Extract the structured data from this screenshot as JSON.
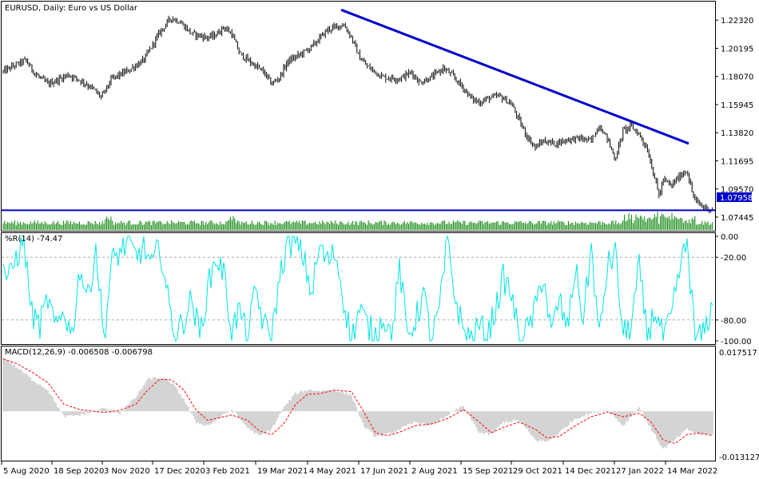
{
  "header": {
    "symbol_label": "EURUSD, Daily:  Euro vs US Dollar"
  },
  "colors": {
    "background": "#ffffff",
    "candles": "#000000",
    "trendline": "#0000cc",
    "support_line": "#0000cc",
    "volume": "#008000",
    "williams": "#00e5e5",
    "macd_hist": "#aaaaaa",
    "macd_signal": "#ff0000",
    "price_badge_bg": "#0000cc",
    "price_badge_text": "#ffffff"
  },
  "chart_data": [
    {
      "type": "candlestick",
      "title": "EURUSD, Daily:  Euro vs US Dollar",
      "ylim": [
        1.066,
        1.236
      ],
      "y_ticks": [
        "1.22320",
        "1.20195",
        "1.18070",
        "1.15945",
        "1.13820",
        "1.11695",
        "1.09570",
        "1.07445"
      ],
      "current_price": "1.07958",
      "series": [
        {
          "name": "close_path",
          "x": [
            0,
            15,
            32,
            45,
            60,
            72,
            85,
            100,
            115,
            127,
            140,
            160,
            180,
            200,
            214,
            225,
            240,
            260,
            270,
            280,
            290,
            300,
            310,
            330,
            340,
            350,
            360,
            375,
            390,
            410,
            430,
            440,
            450,
            460,
            470,
            480,
            500,
            515,
            525,
            540,
            555,
            565,
            580,
            590,
            600,
            610,
            625,
            640,
            650,
            660,
            670,
            680,
            695,
            710,
            725,
            740,
            750,
            760,
            770,
            780,
            790,
            800,
            810,
            820,
            825,
            830,
            840,
            850,
            860,
            865,
            870,
            880,
            893
          ],
          "values": [
            1.183,
            1.188,
            1.193,
            1.182,
            1.175,
            1.178,
            1.182,
            1.178,
            1.172,
            1.165,
            1.179,
            1.185,
            1.193,
            1.214,
            1.225,
            1.222,
            1.213,
            1.21,
            1.212,
            1.218,
            1.213,
            1.198,
            1.193,
            1.184,
            1.175,
            1.18,
            1.192,
            1.197,
            1.203,
            1.216,
            1.22,
            1.21,
            1.195,
            1.188,
            1.184,
            1.18,
            1.179,
            1.184,
            1.176,
            1.18,
            1.187,
            1.182,
            1.172,
            1.164,
            1.161,
            1.164,
            1.166,
            1.16,
            1.147,
            1.135,
            1.127,
            1.132,
            1.13,
            1.133,
            1.134,
            1.132,
            1.144,
            1.134,
            1.118,
            1.14,
            1.143,
            1.137,
            1.126,
            1.103,
            1.09,
            1.103,
            1.098,
            1.105,
            1.11,
            1.096,
            1.087,
            1.082,
            1.08
          ]
        }
      ],
      "trendline": {
        "x": [
          427,
          862
        ],
        "values": [
          1.231,
          1.13
        ]
      },
      "support_line_value": 1.0796
    },
    {
      "type": "bar",
      "name": "volume",
      "values": "per-bar tick volume, roughly steady with spikes near Jan-Mar 2022"
    },
    {
      "type": "line",
      "title": "%R(14) -74.47",
      "ylim": [
        -100,
        0
      ],
      "y_ticks": [
        "0.00",
        "-20.00",
        "-80.00",
        "-100.00"
      ],
      "levels": [
        -20,
        -80
      ],
      "series": [
        {
          "name": "%R(14)",
          "x": [
            0,
            10,
            20,
            30,
            40,
            50,
            60,
            70,
            80,
            90,
            100,
            110,
            120,
            130,
            140,
            150,
            160,
            170,
            180,
            190,
            200,
            210,
            220,
            230,
            240,
            250,
            260,
            270,
            280,
            290,
            300,
            310,
            320,
            330,
            340,
            350,
            360,
            370,
            380,
            390,
            400,
            410,
            420,
            430,
            440,
            450,
            460,
            470,
            480,
            490,
            500,
            510,
            520,
            530,
            540,
            550,
            560,
            570,
            580,
            590,
            600,
            610,
            620,
            630,
            640,
            650,
            660,
            670,
            680,
            690,
            700,
            710,
            720,
            730,
            740,
            750,
            760,
            770,
            780,
            790,
            800,
            810,
            820,
            830,
            840,
            850,
            860,
            870,
            880,
            890,
            893
          ],
          "values": [
            -10,
            -45,
            -20,
            -5,
            -75,
            -85,
            -60,
            -90,
            -70,
            -95,
            -30,
            -60,
            -10,
            -98,
            -25,
            -15,
            -5,
            -20,
            -10,
            -30,
            -8,
            -60,
            -95,
            -80,
            -60,
            -95,
            -50,
            -20,
            -35,
            -90,
            -70,
            -98,
            -50,
            -85,
            -95,
            -40,
            -5,
            -8,
            -20,
            -55,
            -10,
            -25,
            -15,
            -60,
            -98,
            -70,
            -85,
            -95,
            -75,
            -98,
            -30,
            -95,
            -80,
            -55,
            -98,
            -70,
            -5,
            -60,
            -90,
            -98,
            -85,
            -95,
            -70,
            -40,
            -55,
            -98,
            -90,
            -70,
            -35,
            -95,
            -60,
            -90,
            -30,
            -80,
            -10,
            -98,
            -30,
            -15,
            -95,
            -85,
            -30,
            -95,
            -70,
            -98,
            -80,
            -35,
            -5,
            -98,
            -95,
            -70,
            -74.47
          ]
        }
      ]
    },
    {
      "type": "bar",
      "title": "MACD(12,26,9) -0.006508 -0.006798",
      "ylim": [
        -0.01312,
        0.01751
      ],
      "y_ticks": [
        "0.017517",
        "-0.013127"
      ],
      "series": [
        {
          "name": "MACD histogram",
          "x": [
            0,
            20,
            40,
            60,
            80,
            100,
            130,
            150,
            170,
            185,
            200,
            215,
            230,
            245,
            260,
            290,
            310,
            325,
            340,
            355,
            370,
            385,
            400,
            420,
            440,
            455,
            470,
            485,
            500,
            520,
            540,
            560,
            580,
            600,
            615,
            630,
            650,
            670,
            685,
            700,
            720,
            740,
            760,
            780,
            800,
            815,
            830,
            845,
            860,
            875,
            893
          ],
          "values": [
            0.016,
            0.0125,
            0.009,
            0.006,
            -0.0015,
            -0.001,
            0.0008,
            -0.0005,
            0.004,
            0.009,
            0.0095,
            0.008,
            0.0035,
            -0.003,
            -0.004,
            0.0005,
            -0.0045,
            -0.007,
            -0.005,
            0.001,
            0.005,
            0.006,
            0.0058,
            0.006,
            0.0045,
            -0.004,
            -0.007,
            -0.0065,
            -0.005,
            -0.003,
            -0.004,
            -0.001,
            0.0015,
            -0.006,
            -0.0065,
            -0.003,
            -0.0025,
            -0.008,
            -0.0085,
            -0.006,
            -0.002,
            -0.0005,
            0.0005,
            -0.004,
            0.0012,
            -0.005,
            -0.0105,
            -0.008,
            -0.005,
            -0.0065,
            -0.0065
          ]
        },
        {
          "name": "Signal",
          "x": [
            0,
            20,
            40,
            60,
            80,
            100,
            130,
            150,
            170,
            185,
            200,
            215,
            230,
            245,
            260,
            290,
            310,
            325,
            340,
            355,
            370,
            385,
            400,
            420,
            440,
            455,
            470,
            485,
            500,
            520,
            540,
            560,
            580,
            600,
            615,
            630,
            650,
            670,
            685,
            700,
            720,
            740,
            760,
            780,
            800,
            815,
            830,
            845,
            860,
            875,
            893
          ],
          "values": [
            0.015,
            0.0135,
            0.011,
            0.008,
            0.002,
            0.0005,
            -0.0003,
            0.0003,
            0.002,
            0.006,
            0.009,
            0.0088,
            0.006,
            0.0005,
            -0.0025,
            -0.001,
            -0.0025,
            -0.0055,
            -0.0065,
            -0.0035,
            0.002,
            0.0048,
            0.005,
            0.006,
            0.0055,
            0.0,
            -0.006,
            -0.0068,
            -0.0058,
            -0.004,
            -0.0035,
            -0.002,
            0.0005,
            -0.003,
            -0.006,
            -0.0045,
            -0.003,
            -0.005,
            -0.0075,
            -0.007,
            -0.004,
            -0.0015,
            -0.0002,
            -0.0015,
            -0.0005,
            -0.003,
            -0.008,
            -0.009,
            -0.0065,
            -0.006,
            -0.0068
          ]
        }
      ]
    }
  ],
  "x_axis": {
    "tick_labels": [
      "5 Aug 2020",
      "18 Sep 2020",
      "3 Nov 2020",
      "17 Dec 2020",
      "3 Feb 2021",
      "19 Mar 2021",
      "4 May 2021",
      "17 Jun 2021",
      "2 Aug 2021",
      "15 Sep 2021",
      "29 Oct 2021",
      "14 Dec 2021",
      "27 Jan 2022",
      "14 Mar 2022"
    ]
  }
}
